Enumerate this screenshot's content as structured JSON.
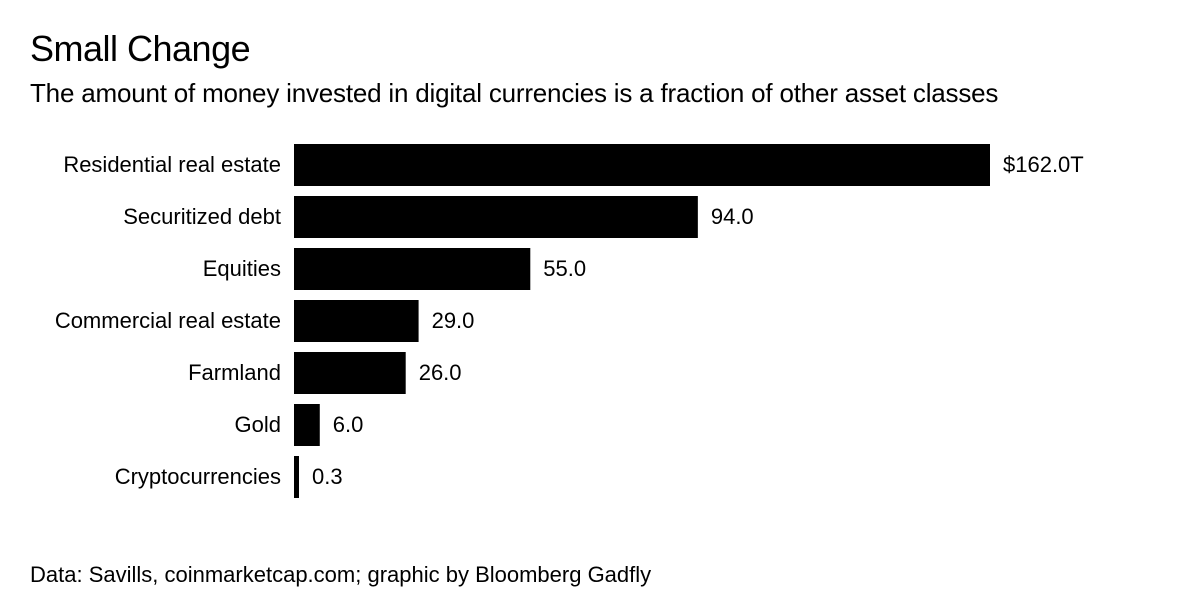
{
  "header": {
    "title": "Small Change",
    "subtitle": "The amount of money invested in digital currencies is a fraction of other asset classes"
  },
  "footer": {
    "source": "Data: Savills, coinmarketcap.com; graphic by Bloomberg Gadfly"
  },
  "chart_data": {
    "type": "bar",
    "orientation": "horizontal",
    "title": "Small Change",
    "subtitle": "The amount of money invested in digital currencies is a fraction of other asset classes",
    "categories": [
      "Residential real estate",
      "Securitized debt",
      "Equities",
      "Commercial real estate",
      "Farmland",
      "Gold",
      "Cryptocurrencies"
    ],
    "values": [
      162.0,
      94.0,
      55.0,
      29.0,
      26.0,
      6.0,
      0.3
    ],
    "value_labels": [
      "$162.0T",
      "94.0",
      "55.0",
      "29.0",
      "26.0",
      "6.0",
      "0.3"
    ],
    "xlim": [
      0,
      162.0
    ],
    "grid": false,
    "legend": "none",
    "bar_color": "#000000"
  }
}
